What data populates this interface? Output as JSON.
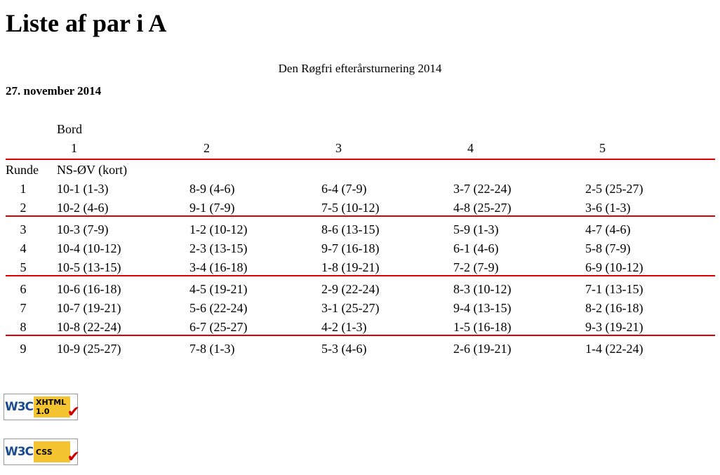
{
  "header": {
    "title": "Liste af par i A",
    "subtitle": "Den Røgfri efterårsturnering 2014",
    "date": "27. november 2014"
  },
  "table": {
    "table_label": "Bord",
    "tables": [
      1,
      2,
      3,
      4,
      5
    ],
    "round_label": "Runde",
    "pair_label": "NS-ØV (kort)",
    "sections": [
      [
        {
          "round": 1,
          "cells": [
            "10-1 (1-3)",
            "8-9 (4-6)",
            "6-4 (7-9)",
            "3-7 (22-24)",
            "2-5 (25-27)"
          ]
        },
        {
          "round": 2,
          "cells": [
            "10-2 (4-6)",
            "9-1 (7-9)",
            "7-5 (10-12)",
            "4-8 (25-27)",
            "3-6 (1-3)"
          ]
        }
      ],
      [
        {
          "round": 3,
          "cells": [
            "10-3 (7-9)",
            "1-2 (10-12)",
            "8-6 (13-15)",
            "5-9 (1-3)",
            "4-7 (4-6)"
          ]
        },
        {
          "round": 4,
          "cells": [
            "10-4 (10-12)",
            "2-3 (13-15)",
            "9-7 (16-18)",
            "6-1 (4-6)",
            "5-8 (7-9)"
          ]
        },
        {
          "round": 5,
          "cells": [
            "10-5 (13-15)",
            "3-4 (16-18)",
            "1-8 (19-21)",
            "7-2 (7-9)",
            "6-9 (10-12)"
          ]
        }
      ],
      [
        {
          "round": 6,
          "cells": [
            "10-6 (16-18)",
            "4-5 (19-21)",
            "2-9 (22-24)",
            "8-3 (10-12)",
            "7-1 (13-15)"
          ]
        },
        {
          "round": 7,
          "cells": [
            "10-7 (19-21)",
            "5-6 (22-24)",
            "3-1 (25-27)",
            "9-4 (13-15)",
            "8-2 (16-18)"
          ]
        },
        {
          "round": 8,
          "cells": [
            "10-8 (22-24)",
            "6-7 (25-27)",
            "4-2 (1-3)",
            "1-5 (16-18)",
            "9-3 (19-21)"
          ]
        }
      ],
      [
        {
          "round": 9,
          "cells": [
            "10-9 (25-27)",
            "7-8 (1-3)",
            "5-3 (4-6)",
            "2-6 (19-21)",
            "1-4 (22-24)"
          ]
        }
      ]
    ]
  },
  "badges": [
    {
      "logo": "W3C",
      "text": "XHTML 1.0"
    },
    {
      "logo": "W3C",
      "text": "CSS"
    }
  ]
}
